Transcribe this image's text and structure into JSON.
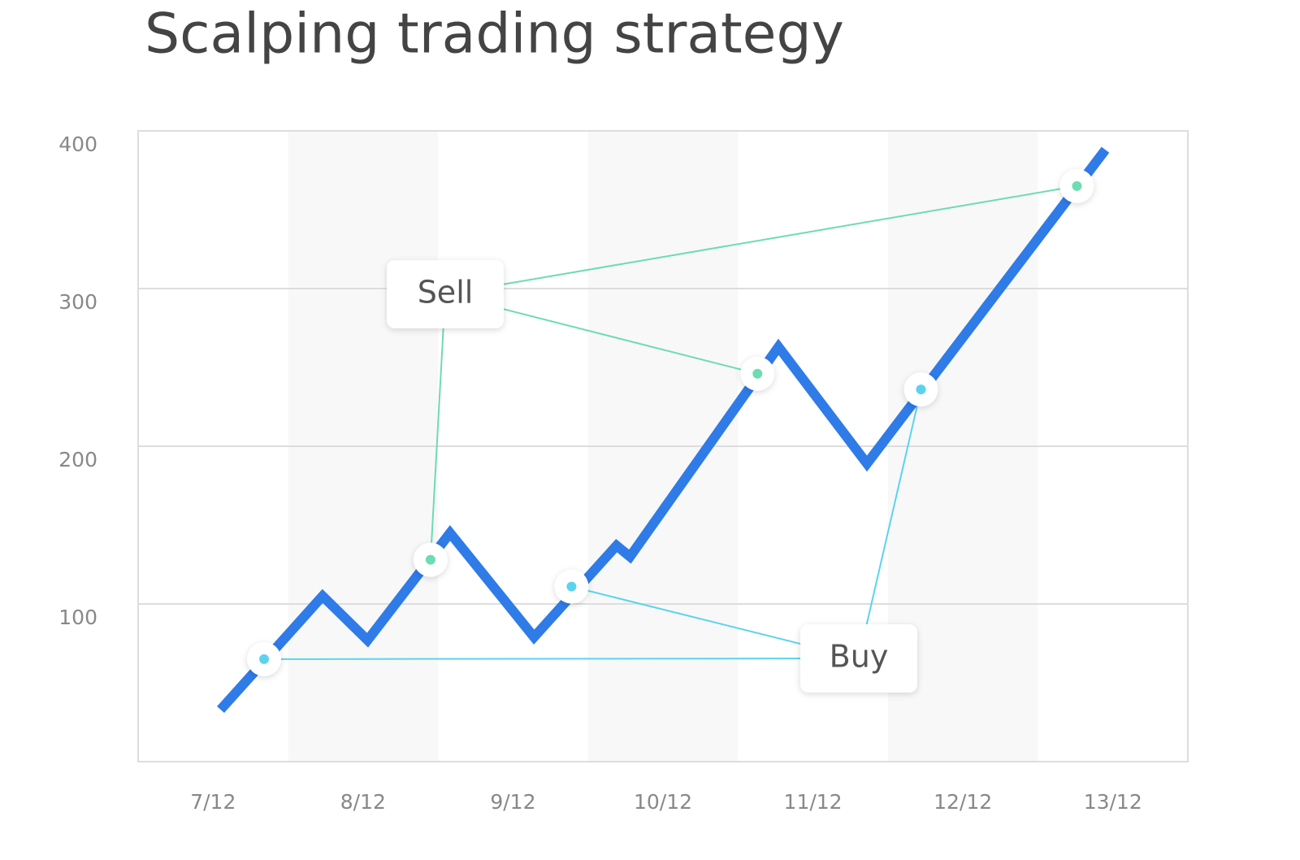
{
  "chart_data": {
    "type": "line",
    "title": "Scalping trading strategy",
    "x": [
      0.05,
      0.73,
      1.03,
      1.58,
      2.14,
      2.69,
      2.78,
      3.77,
      4.36,
      5.95
    ],
    "values": [
      33,
      105,
      77,
      145,
      79,
      137,
      130,
      263,
      189,
      388
    ],
    "color": "#2f7be8",
    "xlim": [
      -0.5,
      6.5
    ],
    "ylim": [
      0,
      400
    ],
    "xticks": [
      {
        "value": 0,
        "label": "7/12"
      },
      {
        "value": 1,
        "label": "8/12"
      },
      {
        "value": 2,
        "label": "9/12"
      },
      {
        "value": 3,
        "label": "10/12"
      },
      {
        "value": 4,
        "label": "11/12"
      },
      {
        "value": 5,
        "label": "12/12"
      },
      {
        "value": 6,
        "label": "13/12"
      }
    ],
    "yticks": [
      100,
      200,
      300,
      400
    ],
    "grid": true,
    "annotations": [
      {
        "text": "Sell",
        "color": "#6ddcb0",
        "x": [
          1.45,
          3.63,
          5.76
        ],
        "values": [
          128,
          246,
          365
        ]
      },
      {
        "text": "Buy",
        "color": "#5bd3ee",
        "x": [
          0.34,
          2.39,
          4.72
        ],
        "values": [
          65,
          111,
          236
        ]
      }
    ]
  }
}
